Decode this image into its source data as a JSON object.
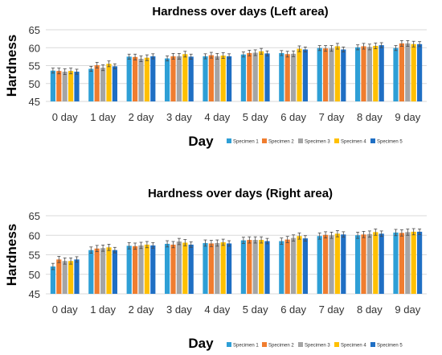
{
  "chart_data": [
    {
      "type": "bar",
      "title": "Hardness over days (Left area)",
      "xlabel": "Day",
      "ylabel": "Hardness",
      "ylim": [
        45,
        65
      ],
      "yticks": [
        45,
        50,
        55,
        60,
        65
      ],
      "grid": true,
      "legend_position": "bottom-right",
      "categories": [
        "0 day",
        "1 day",
        "2 day",
        "3 day",
        "4 day",
        "5 day",
        "6 day",
        "7 day",
        "8 day",
        "9 day"
      ],
      "series": [
        {
          "name": "Specimen 1",
          "color": "#2e9fd6",
          "values": [
            53.6,
            54.1,
            57.5,
            57.0,
            57.6,
            58.1,
            58.5,
            59.9,
            60.1,
            59.9
          ],
          "errors": [
            0.7,
            0.7,
            0.7,
            0.7,
            0.7,
            0.7,
            0.7,
            0.7,
            0.7,
            0.7
          ]
        },
        {
          "name": "Specimen 2",
          "color": "#f07d2f",
          "values": [
            53.5,
            55.1,
            57.4,
            57.6,
            57.9,
            58.5,
            58.2,
            59.8,
            60.4,
            61.2
          ],
          "errors": [
            0.8,
            0.8,
            0.8,
            0.8,
            0.8,
            0.8,
            0.8,
            0.8,
            0.8,
            0.8
          ]
        },
        {
          "name": "Specimen 3",
          "color": "#a5a5a5",
          "values": [
            53.3,
            54.4,
            56.9,
            57.6,
            57.6,
            58.6,
            58.3,
            59.8,
            60.2,
            61.2
          ],
          "errors": [
            0.8,
            0.8,
            0.8,
            0.8,
            0.8,
            0.8,
            0.8,
            0.8,
            0.8,
            0.8
          ]
        },
        {
          "name": "Specimen 4",
          "color": "#ffc000",
          "values": [
            53.5,
            55.5,
            57.2,
            58.2,
            57.8,
            59.0,
            59.7,
            60.4,
            60.5,
            61.0
          ],
          "errors": [
            0.8,
            0.8,
            0.8,
            0.8,
            0.8,
            0.8,
            0.8,
            0.8,
            0.8,
            0.8
          ]
        },
        {
          "name": "Specimen 5",
          "color": "#1f6fc4",
          "values": [
            53.3,
            54.8,
            57.6,
            57.5,
            57.6,
            58.4,
            59.5,
            59.5,
            60.7,
            61.0
          ],
          "errors": [
            0.7,
            0.7,
            0.7,
            0.7,
            0.7,
            0.7,
            0.7,
            0.7,
            0.7,
            0.7
          ]
        }
      ]
    },
    {
      "type": "bar",
      "title": "Hardness over days (Right area)",
      "xlabel": "Day",
      "ylabel": "Hardness",
      "ylim": [
        45,
        65
      ],
      "yticks": [
        45,
        50,
        55,
        60,
        65
      ],
      "grid": true,
      "legend_position": "bottom-right",
      "categories": [
        "0 day",
        "1 day",
        "2 day",
        "3 day",
        "4 day",
        "5 day",
        "6 day",
        "7 day",
        "8 day",
        "9 day"
      ],
      "series": [
        {
          "name": "Specimen 1",
          "color": "#2e9fd6",
          "values": [
            52.0,
            56.2,
            57.3,
            57.8,
            58.0,
            58.7,
            58.5,
            59.8,
            60.0,
            60.7
          ],
          "errors": [
            0.8,
            0.8,
            0.8,
            0.8,
            0.8,
            0.8,
            0.8,
            0.8,
            0.8,
            0.8
          ]
        },
        {
          "name": "Specimen 2",
          "color": "#f07d2f",
          "values": [
            53.8,
            56.6,
            57.2,
            57.6,
            57.9,
            58.8,
            58.9,
            60.1,
            60.2,
            60.6
          ],
          "errors": [
            0.8,
            0.8,
            0.8,
            0.8,
            0.8,
            0.8,
            0.8,
            0.8,
            0.8,
            0.8
          ]
        },
        {
          "name": "Specimen 3",
          "color": "#a5a5a5",
          "values": [
            53.4,
            56.7,
            57.4,
            58.4,
            58.0,
            58.8,
            59.3,
            60.0,
            60.3,
            60.8
          ],
          "errors": [
            0.8,
            0.8,
            0.8,
            0.8,
            0.8,
            0.8,
            0.8,
            0.8,
            0.8,
            0.8
          ]
        },
        {
          "name": "Specimen 4",
          "color": "#ffc000",
          "values": [
            53.4,
            56.9,
            57.6,
            58.1,
            58.2,
            58.8,
            59.8,
            60.4,
            60.8,
            60.9
          ],
          "errors": [
            0.8,
            0.8,
            0.8,
            0.8,
            0.8,
            0.8,
            0.8,
            0.8,
            0.8,
            0.8
          ]
        },
        {
          "name": "Specimen 5",
          "color": "#1f6fc4",
          "values": [
            53.8,
            56.2,
            57.4,
            57.6,
            57.9,
            58.5,
            59.2,
            60.2,
            60.4,
            60.9
          ],
          "errors": [
            0.7,
            0.7,
            0.7,
            0.7,
            0.7,
            0.7,
            0.7,
            0.7,
            0.7,
            0.7
          ]
        }
      ]
    }
  ]
}
